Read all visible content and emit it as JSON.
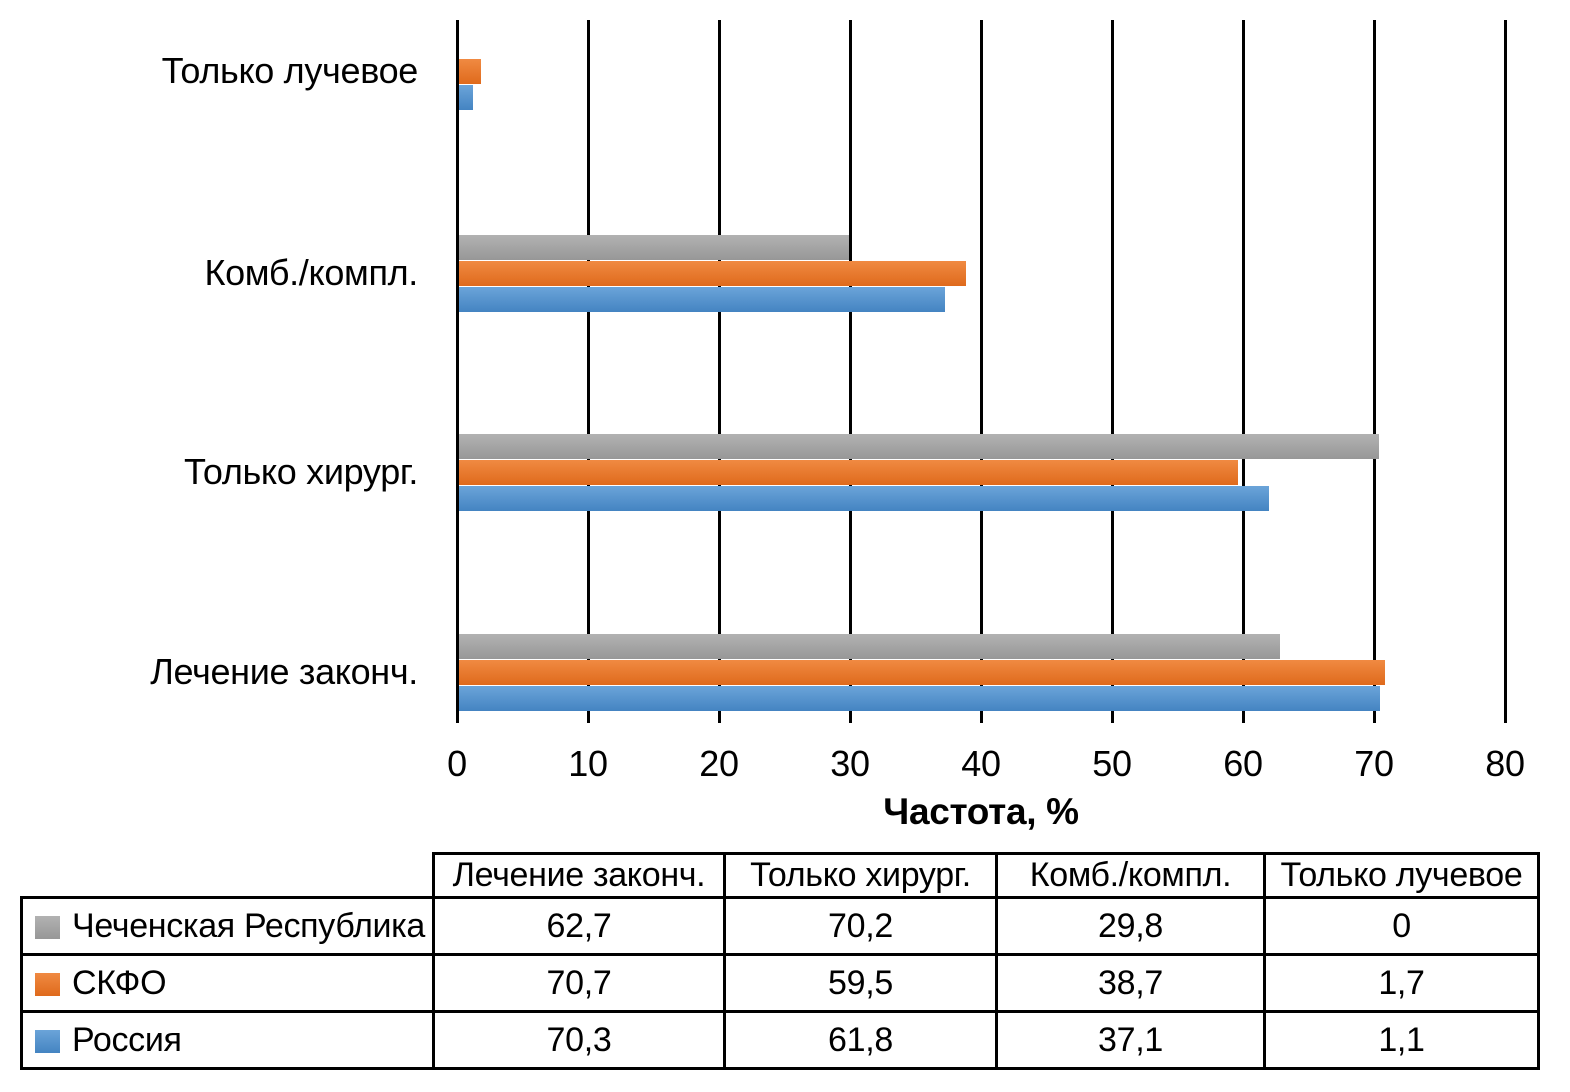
{
  "chart_data": {
    "type": "bar",
    "orientation": "horizontal",
    "title": "",
    "xlabel": "Частота, %",
    "ylabel": "",
    "xlim": [
      0,
      80
    ],
    "x_ticks": [
      0,
      10,
      20,
      30,
      40,
      50,
      60,
      70,
      80
    ],
    "grid": "vertical-major-on",
    "legend_position": "bottom-table",
    "categories_top_to_bottom": [
      "Только лучевое",
      "Комб./компл.",
      "Только хирург.",
      "Лечение законч."
    ],
    "series": [
      {
        "name": "Чеченская Республика",
        "color": "#a6a6a6",
        "color_top": "#b2b2b2",
        "color_bottom": "#979797",
        "values": [
          0,
          29.8,
          70.2,
          62.7
        ]
      },
      {
        "name": "СКФО",
        "color": "#ed7d31",
        "color_top": "#f08a42",
        "color_bottom": "#df6a1c",
        "values": [
          1.7,
          38.7,
          59.5,
          70.7
        ]
      },
      {
        "name": "Россия",
        "color": "#5b9bd5",
        "color_top": "#6ba4d9",
        "color_bottom": "#4484c2",
        "values": [
          1.1,
          37.1,
          61.8,
          70.3
        ]
      }
    ]
  },
  "table": {
    "columns": [
      "Лечение законч.",
      "Только хирург.",
      "Комб./компл.",
      "Только лучевое"
    ],
    "rows": [
      {
        "name": "Чеченская Республика",
        "values": [
          "62,7",
          "70,2",
          "29,8",
          "0"
        ]
      },
      {
        "name": "СКФО",
        "values": [
          "70,7",
          "59,5",
          "38,7",
          "1,7"
        ]
      },
      {
        "name": "Россия",
        "values": [
          "70,3",
          "61,8",
          "37,1",
          "1,1"
        ]
      }
    ]
  }
}
